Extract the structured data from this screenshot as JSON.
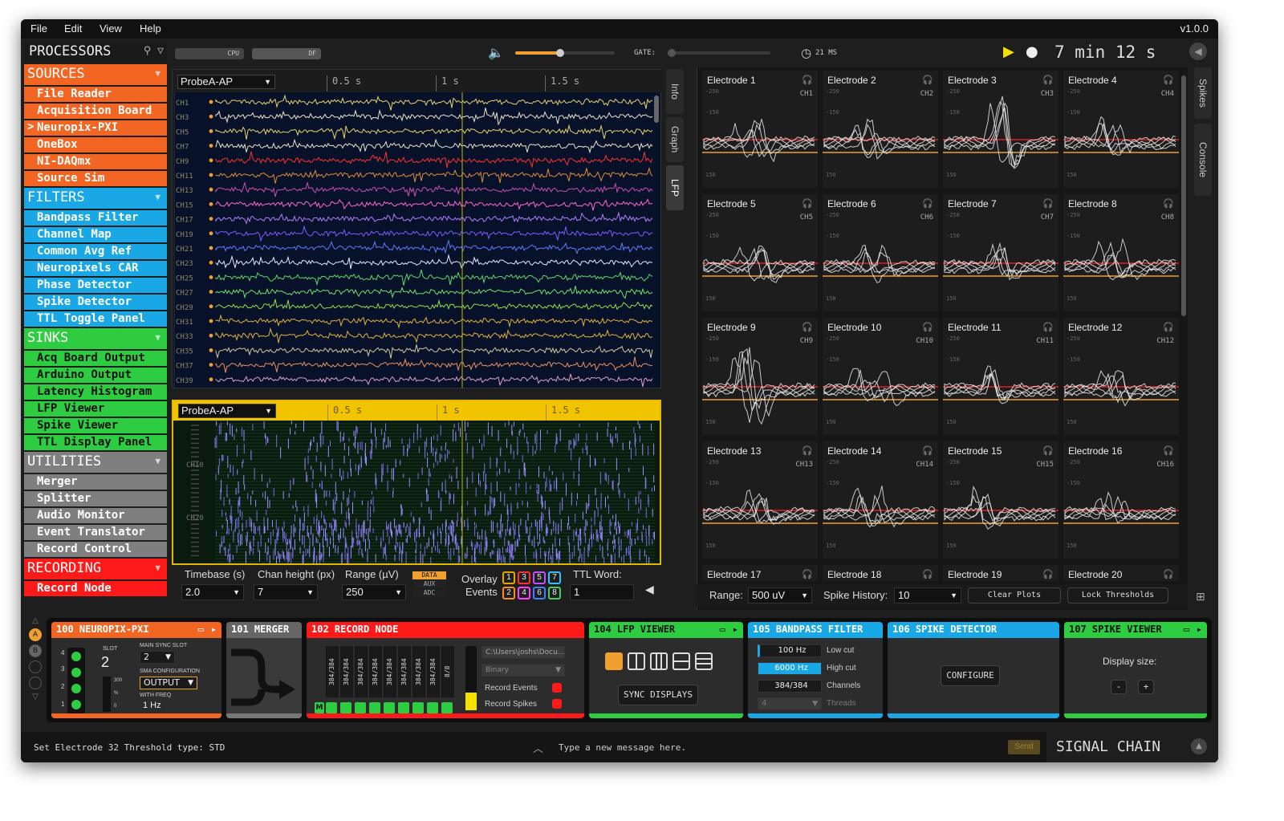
{
  "menu": {
    "items": [
      "File",
      "Edit",
      "View",
      "Help"
    ],
    "version": "v1.0.0"
  },
  "processors": {
    "title": "PROCESSORS",
    "categories": [
      {
        "name": "SOURCES",
        "color": "#f26522",
        "items": [
          "File Reader",
          "Acquisition Board",
          "Neuropix-PXI",
          "OneBox",
          "NI-DAQmx",
          "Source Sim"
        ],
        "selected": "Neuropix-PXI"
      },
      {
        "name": "FILTERS",
        "color": "#1aa7e6",
        "items": [
          "Bandpass Filter",
          "Channel Map",
          "Common Avg Ref",
          "Neuropixels CAR",
          "Phase Detector",
          "Spike Detector",
          "TTL Toggle Panel"
        ]
      },
      {
        "name": "SINKS",
        "color": "#2ecc40",
        "items": [
          "Acq Board Output",
          "Arduino Output",
          "Latency Histogram",
          "LFP Viewer",
          "Spike Viewer",
          "TTL Display Panel"
        ]
      },
      {
        "name": "UTILITIES",
        "color": "#7f7f7f",
        "items": [
          "Merger",
          "Splitter",
          "Audio Monitor",
          "Event Translator",
          "Record Control"
        ]
      },
      {
        "name": "RECORDING",
        "color": "#ff1a1a",
        "items": [
          "Record Node"
        ]
      }
    ]
  },
  "toolbar": {
    "cpu": "CPU",
    "df": "DF",
    "gate": "GATE:",
    "latency": "21 MS",
    "clock": "7 min 12 s",
    "volume_fraction": 0.45
  },
  "lfp": {
    "probe": "ProbeA-AP",
    "ticks": [
      "0.5 s",
      "1 s",
      "1.5 s"
    ],
    "channels": [
      "CH1",
      "CH3",
      "CH5",
      "CH7",
      "CH9",
      "CH11",
      "CH13",
      "CH15",
      "CH17",
      "CH19",
      "CH21",
      "CH23",
      "CH25",
      "CH27",
      "CH29",
      "CH31",
      "CH33",
      "CH35",
      "CH37",
      "CH39"
    ],
    "channel_colors": [
      "#e6d36b",
      "#e8e4c8",
      "#e6d36b",
      "#e8e4c8",
      "#ff3030",
      "#e08a3a",
      "#c84fb0",
      "#ff66cc",
      "#b07cff",
      "#7a5cff",
      "#5b7cff",
      "#e8e8ff",
      "#5cd86a",
      "#6ee070",
      "#8ee04a",
      "#e0b040",
      "#e0b040",
      "#d0c8a0",
      "#e89060",
      "#e0a0c0"
    ],
    "raster_probe": "ProbeA-AP",
    "raster_ticks": [
      "0.5 s",
      "1 s",
      "1.5 s"
    ],
    "raster_labels": [
      "CH10",
      "CH20"
    ],
    "side_tabs": [
      "Info",
      "Graph",
      "LFP"
    ]
  },
  "lfp_controls": {
    "timebase_label": "Timebase (s)",
    "timebase": "2.0",
    "chan_height_label": "Chan height (px)",
    "chan_height": "7",
    "range_label": "Range (µV)",
    "range": "250",
    "modes": [
      "DATA",
      "AUX",
      "ADC"
    ],
    "overlay_label": "Overlay",
    "events_label": "Events",
    "event_numbers_top": [
      "1",
      "3",
      "5",
      "7"
    ],
    "event_numbers_bottom": [
      "2",
      "4",
      "6",
      "8"
    ],
    "event_colors": [
      "#e6a800",
      "#ff3030",
      "#c050ff",
      "#30c0ff",
      "#ff8c1a",
      "#ff40ff",
      "#4080ff",
      "#40d060"
    ],
    "ttl_label": "TTL Word:",
    "ttl_value": "1"
  },
  "spikes": {
    "electrodes": [
      {
        "name": "Electrode 1",
        "ch": "CH1"
      },
      {
        "name": "Electrode 2",
        "ch": "CH2"
      },
      {
        "name": "Electrode 3",
        "ch": "CH3"
      },
      {
        "name": "Electrode 4",
        "ch": "CH4"
      },
      {
        "name": "Electrode 5",
        "ch": "CH5"
      },
      {
        "name": "Electrode 6",
        "ch": "CH6"
      },
      {
        "name": "Electrode 7",
        "ch": "CH7"
      },
      {
        "name": "Electrode 8",
        "ch": "CH8"
      },
      {
        "name": "Electrode 9",
        "ch": "CH9"
      },
      {
        "name": "Electrode 10",
        "ch": "CH10"
      },
      {
        "name": "Electrode 11",
        "ch": "CH11"
      },
      {
        "name": "Electrode 12",
        "ch": "CH12"
      },
      {
        "name": "Electrode 13",
        "ch": "CH13"
      },
      {
        "name": "Electrode 14",
        "ch": "CH14"
      },
      {
        "name": "Electrode 15",
        "ch": "CH15"
      },
      {
        "name": "Electrode 16",
        "ch": "CH16"
      },
      {
        "name": "Electrode 17",
        "ch": ""
      },
      {
        "name": "Electrode 18",
        "ch": ""
      },
      {
        "name": "Electrode 19",
        "ch": ""
      },
      {
        "name": "Electrode 20",
        "ch": ""
      }
    ],
    "scale": [
      "-250",
      "-150",
      "150"
    ],
    "range_label": "Range:",
    "range": "500 uV",
    "history_label": "Spike History:",
    "history": "10",
    "clear_label": "Clear Plots",
    "lock_label": "Lock Thresholds",
    "side_tabs": [
      "Spikes",
      "Console"
    ]
  },
  "editors": {
    "neuropix": {
      "title": "100 NEUROPIX-PXI",
      "slot_label": "SLOT",
      "slot": "2",
      "main_sync_label": "MAIN SYNC SLOT",
      "main_sync": "2",
      "sma_label": "SMA CONFIGURATION",
      "sma": "OUTPUT",
      "freq_label": "WITH FREQ",
      "freq": "1 Hz",
      "port_nums": [
        "4",
        "3",
        "2",
        "1"
      ],
      "scale": [
        "300",
        "%",
        "0"
      ]
    },
    "merger": {
      "title": "101 MERGER"
    },
    "record": {
      "title": "102 RECORD NODE",
      "streams": [
        "384/384",
        "384/384",
        "384/384",
        "384/384",
        "384/384",
        "384/384",
        "384/384",
        "384/384",
        "8/8"
      ],
      "path": "C:\\Users\\joshs\\Docu...",
      "format": "Binary",
      "rec_events": "Record Events",
      "rec_spikes": "Record Spikes",
      "m": "M"
    },
    "lfpviewer": {
      "title": "104 LFP VIEWER",
      "sync": "SYNC DISPLAYS"
    },
    "bandpass": {
      "title": "105 BANDPASS FILTER",
      "low": "100 Hz",
      "low_label": "Low cut",
      "high": "6000 Hz",
      "high_label": "High cut",
      "channels": "384/384",
      "channels_label": "Channels",
      "threads": "4",
      "threads_label": "Threads"
    },
    "spikedet": {
      "title": "106 SPIKE DETECTOR",
      "configure": "CONFIGURE"
    },
    "spikeview": {
      "title": "107 SPIKE VIEWER",
      "display_label": "Display size:",
      "minus": "-",
      "plus": "+"
    }
  },
  "status": {
    "message": "Set Electrode 32 Threshold type: STD",
    "input_placeholder": "Type a new message here.",
    "send": "Send",
    "signal_chain": "SIGNAL CHAIN"
  },
  "left_controls": [
    "A",
    "B"
  ]
}
